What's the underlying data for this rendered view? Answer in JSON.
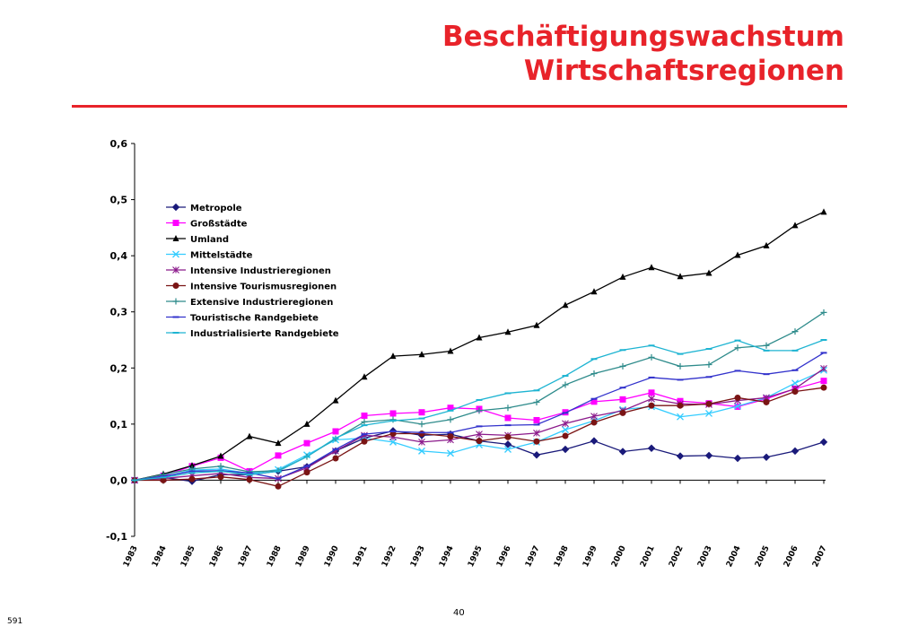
{
  "title": {
    "line1": "Beschäftigungswachstum",
    "line2": "Wirtschaftsregionen"
  },
  "footer": {
    "page_number": "40",
    "code": "591"
  },
  "colors": {
    "accent": "#e8232a"
  },
  "chart_data": {
    "type": "line",
    "ylim": [
      -0.1,
      0.6
    ],
    "yticks": [
      -0.1,
      0.0,
      0.1,
      0.2,
      0.3,
      0.4,
      0.5,
      0.6
    ],
    "ytick_labels": [
      "-0,1",
      "0,0",
      "0,1",
      "0,2",
      "0,3",
      "0,4",
      "0,5",
      "0,6"
    ],
    "grid": false,
    "legend_position": "top-left",
    "categories": [
      "1983",
      "1984",
      "1985",
      "1986",
      "1987",
      "1988",
      "1989",
      "1990",
      "1991",
      "1992",
      "1993",
      "1994",
      "1995",
      "1996",
      "1997",
      "1998",
      "1999",
      "2000",
      "2001",
      "2002",
      "2003",
      "2004",
      "2005",
      "2006",
      "2007"
    ],
    "series": [
      {
        "name": "Metropole",
        "color": "#1a1a7a",
        "marker": "diamond",
        "values": [
          0.0,
          0.005,
          -0.002,
          0.01,
          0.01,
          0.016,
          0.024,
          0.052,
          0.075,
          0.088,
          0.08,
          0.082,
          0.07,
          0.064,
          0.045,
          0.055,
          0.07,
          0.051,
          0.057,
          0.043,
          0.044,
          0.039,
          0.041,
          0.052,
          0.068
        ]
      },
      {
        "name": "Großstädte",
        "color": "#ff00ff",
        "marker": "square",
        "values": [
          0.0,
          0.008,
          0.025,
          0.04,
          0.016,
          0.044,
          0.066,
          0.087,
          0.115,
          0.119,
          0.121,
          0.129,
          0.127,
          0.111,
          0.107,
          0.121,
          0.14,
          0.144,
          0.156,
          0.141,
          0.137,
          0.131,
          0.145,
          0.163,
          0.177
        ]
      },
      {
        "name": "Umland",
        "color": "#000000",
        "marker": "triangle",
        "values": [
          0.0,
          0.011,
          0.026,
          0.043,
          0.078,
          0.066,
          0.1,
          0.142,
          0.184,
          0.221,
          0.224,
          0.23,
          0.254,
          0.264,
          0.276,
          0.312,
          0.336,
          0.362,
          0.379,
          0.363,
          0.369,
          0.401,
          0.418,
          0.454,
          0.478
        ]
      },
      {
        "name": "Mittelstädte",
        "color": "#33ccff",
        "marker": "x",
        "values": [
          0.0,
          0.006,
          0.018,
          0.02,
          0.012,
          0.019,
          0.045,
          0.072,
          0.075,
          0.068,
          0.052,
          0.048,
          0.063,
          0.055,
          0.068,
          0.09,
          0.106,
          0.126,
          0.131,
          0.113,
          0.119,
          0.132,
          0.147,
          0.173,
          0.196
        ]
      },
      {
        "name": "Intensive Industrieregionen",
        "color": "#8b1a8b",
        "marker": "star",
        "values": [
          0.0,
          0.003,
          0.008,
          0.012,
          0.005,
          0.003,
          0.022,
          0.052,
          0.08,
          0.077,
          0.068,
          0.072,
          0.082,
          0.08,
          0.084,
          0.101,
          0.114,
          0.124,
          0.145,
          0.136,
          0.135,
          0.142,
          0.147,
          0.163,
          0.199
        ]
      },
      {
        "name": "Intensive Tourismusregionen",
        "color": "#7a1414",
        "marker": "circle",
        "values": [
          0.0,
          0.0,
          0.002,
          0.006,
          0.001,
          -0.011,
          0.014,
          0.039,
          0.069,
          0.083,
          0.083,
          0.078,
          0.07,
          0.077,
          0.069,
          0.079,
          0.103,
          0.12,
          0.133,
          0.133,
          0.136,
          0.147,
          0.139,
          0.158,
          0.165
        ]
      },
      {
        "name": "Extensive Industrieregionen",
        "color": "#2e8b8b",
        "marker": "plus",
        "values": [
          0.0,
          0.01,
          0.02,
          0.025,
          0.015,
          0.017,
          0.042,
          0.074,
          0.104,
          0.108,
          0.1,
          0.108,
          0.124,
          0.129,
          0.139,
          0.17,
          0.19,
          0.203,
          0.219,
          0.203,
          0.206,
          0.236,
          0.24,
          0.265,
          0.299
        ]
      },
      {
        "name": "Touristische Randgebiete",
        "color": "#3333cc",
        "marker": "dash",
        "values": [
          0.0,
          0.007,
          0.016,
          0.017,
          0.013,
          0.003,
          0.025,
          0.055,
          0.082,
          0.087,
          0.085,
          0.085,
          0.096,
          0.098,
          0.099,
          0.12,
          0.145,
          0.165,
          0.183,
          0.179,
          0.184,
          0.195,
          0.189,
          0.196,
          0.227
        ]
      },
      {
        "name": "Industrialisierte Randgebiete",
        "color": "#1eb4d2",
        "marker": "dash",
        "values": [
          0.0,
          0.005,
          0.013,
          0.016,
          0.01,
          0.016,
          0.042,
          0.075,
          0.098,
          0.106,
          0.11,
          0.124,
          0.143,
          0.155,
          0.16,
          0.186,
          0.216,
          0.232,
          0.24,
          0.225,
          0.234,
          0.249,
          0.231,
          0.231,
          0.25
        ]
      }
    ]
  }
}
